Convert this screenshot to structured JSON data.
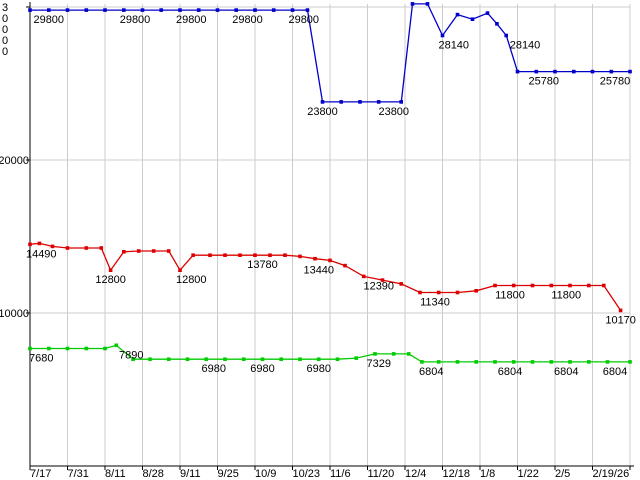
{
  "page": {
    "background": "#ffffff"
  },
  "chart_data": {
    "type": "line",
    "title": "",
    "xlabel": "",
    "ylabel": "",
    "ylim": [
      0,
      30000
    ],
    "grid": true,
    "legend": "none",
    "axis_color": "#000000",
    "grid_color": "#cccccc",
    "label_color": "#000000",
    "background_color": "#ffffff",
    "x_tick_labels": [
      "7/17",
      "7/31",
      "8/11",
      "8/28",
      "9/11",
      "9/25",
      "10/9",
      "10/23",
      "11/6",
      "11/20",
      "12/4",
      "12/18",
      "1/8",
      "1/22",
      "2/5",
      "2/19/26"
    ],
    "y_ticks": [
      {
        "value": 10000,
        "label": "10000",
        "orientation": "horizontal"
      },
      {
        "value": 20000,
        "label": "20000",
        "orientation": "horizontal"
      },
      {
        "value": 30000,
        "label": "30000",
        "orientation": "vertical"
      }
    ],
    "series": [
      {
        "name": "blue-price-series",
        "color": "#0000cc",
        "points": [
          [
            0,
            29800
          ],
          [
            0.5,
            29800
          ],
          [
            1,
            29800
          ],
          [
            1.5,
            29800
          ],
          [
            2,
            29800
          ],
          [
            2.5,
            29800
          ],
          [
            3,
            29800
          ],
          [
            3.5,
            29800
          ],
          [
            4,
            29800
          ],
          [
            4.5,
            29800
          ],
          [
            5,
            29800
          ],
          [
            5.5,
            29800
          ],
          [
            6,
            29800
          ],
          [
            6.5,
            29800
          ],
          [
            7,
            29800
          ],
          [
            7.4,
            29800
          ],
          [
            7.8,
            23800
          ],
          [
            8.3,
            23800
          ],
          [
            8.8,
            23800
          ],
          [
            9.3,
            23800
          ],
          [
            9.9,
            23800
          ],
          [
            10.2,
            30200
          ],
          [
            10.6,
            30200
          ],
          [
            11.0,
            28140
          ],
          [
            11.4,
            29500
          ],
          [
            11.8,
            29200
          ],
          [
            12.2,
            29600
          ],
          [
            12.45,
            28900
          ],
          [
            12.7,
            28140
          ],
          [
            13.0,
            25780
          ],
          [
            13.5,
            25780
          ],
          [
            14.0,
            25780
          ],
          [
            14.5,
            25780
          ],
          [
            15.0,
            25780
          ],
          [
            15.5,
            25780
          ],
          [
            16.0,
            25780
          ]
        ],
        "value_labels": [
          {
            "x": 0.5,
            "v": 29800,
            "text": "29800"
          },
          {
            "x": 2.8,
            "v": 29800,
            "text": "29800"
          },
          {
            "x": 4.3,
            "v": 29800,
            "text": "29800"
          },
          {
            "x": 5.8,
            "v": 29800,
            "text": "29800"
          },
          {
            "x": 7.3,
            "v": 29800,
            "text": "29800"
          },
          {
            "x": 7.8,
            "v": 23800,
            "text": "23800"
          },
          {
            "x": 9.7,
            "v": 23800,
            "text": "23800"
          },
          {
            "x": 11.3,
            "v": 28140,
            "text": "28140"
          },
          {
            "x": 13.2,
            "v": 28140,
            "text": "28140"
          },
          {
            "x": 13.7,
            "v": 25780,
            "text": "25780"
          },
          {
            "x": 15.6,
            "v": 25780,
            "text": "25780"
          }
        ]
      },
      {
        "name": "red-price-series",
        "color": "#dd0000",
        "points": [
          [
            0,
            14490
          ],
          [
            0.25,
            14550
          ],
          [
            0.6,
            14350
          ],
          [
            1.0,
            14250
          ],
          [
            1.5,
            14250
          ],
          [
            1.9,
            14250
          ],
          [
            2.15,
            12800
          ],
          [
            2.5,
            14000
          ],
          [
            2.9,
            14050
          ],
          [
            3.3,
            14050
          ],
          [
            3.7,
            14050
          ],
          [
            4.0,
            12800
          ],
          [
            4.35,
            13780
          ],
          [
            4.8,
            13780
          ],
          [
            5.2,
            13780
          ],
          [
            5.6,
            13780
          ],
          [
            6.0,
            13780
          ],
          [
            6.4,
            13780
          ],
          [
            6.8,
            13780
          ],
          [
            7.2,
            13700
          ],
          [
            7.6,
            13550
          ],
          [
            8.0,
            13440
          ],
          [
            8.4,
            13100
          ],
          [
            8.9,
            12390
          ],
          [
            9.4,
            12150
          ],
          [
            9.9,
            11900
          ],
          [
            10.4,
            11340
          ],
          [
            10.9,
            11340
          ],
          [
            11.4,
            11340
          ],
          [
            11.9,
            11450
          ],
          [
            12.4,
            11800
          ],
          [
            12.9,
            11800
          ],
          [
            13.4,
            11800
          ],
          [
            13.9,
            11800
          ],
          [
            14.4,
            11800
          ],
          [
            14.9,
            11800
          ],
          [
            15.3,
            11800
          ],
          [
            15.75,
            10170
          ]
        ],
        "value_labels": [
          {
            "x": 0.3,
            "v": 14490,
            "text": "14490"
          },
          {
            "x": 2.15,
            "v": 12800,
            "text": "12800"
          },
          {
            "x": 4.3,
            "v": 12800,
            "text": "12800"
          },
          {
            "x": 6.2,
            "v": 13780,
            "text": "13780"
          },
          {
            "x": 7.7,
            "v": 13440,
            "text": "13440"
          },
          {
            "x": 9.3,
            "v": 12390,
            "text": "12390"
          },
          {
            "x": 10.8,
            "v": 11340,
            "text": "11340"
          },
          {
            "x": 12.8,
            "v": 11800,
            "text": "11800"
          },
          {
            "x": 14.3,
            "v": 11800,
            "text": "11800"
          },
          {
            "x": 15.75,
            "v": 10170,
            "text": "10170"
          }
        ]
      },
      {
        "name": "green-price-series",
        "color": "#00cc00",
        "points": [
          [
            0,
            7680
          ],
          [
            0.5,
            7680
          ],
          [
            1.0,
            7680
          ],
          [
            1.5,
            7680
          ],
          [
            2.0,
            7680
          ],
          [
            2.3,
            7890
          ],
          [
            2.75,
            6980
          ],
          [
            3.2,
            6980
          ],
          [
            3.7,
            6980
          ],
          [
            4.2,
            6980
          ],
          [
            4.7,
            6980
          ],
          [
            5.2,
            6980
          ],
          [
            5.7,
            6980
          ],
          [
            6.2,
            6980
          ],
          [
            6.7,
            6980
          ],
          [
            7.2,
            6980
          ],
          [
            7.7,
            6980
          ],
          [
            8.2,
            6980
          ],
          [
            8.7,
            7050
          ],
          [
            9.2,
            7329
          ],
          [
            9.7,
            7329
          ],
          [
            10.1,
            7329
          ],
          [
            10.45,
            6804
          ],
          [
            10.9,
            6804
          ],
          [
            11.4,
            6804
          ],
          [
            11.9,
            6804
          ],
          [
            12.4,
            6804
          ],
          [
            12.9,
            6804
          ],
          [
            13.4,
            6804
          ],
          [
            13.9,
            6804
          ],
          [
            14.4,
            6804
          ],
          [
            14.9,
            6804
          ],
          [
            15.4,
            6804
          ],
          [
            16.0,
            6804
          ]
        ],
        "value_labels": [
          {
            "x": 0.3,
            "v": 7680,
            "text": "7680"
          },
          {
            "x": 2.7,
            "v": 7890,
            "text": "7890"
          },
          {
            "x": 4.9,
            "v": 6980,
            "text": "6980"
          },
          {
            "x": 6.2,
            "v": 6980,
            "text": "6980"
          },
          {
            "x": 7.7,
            "v": 6980,
            "text": "6980"
          },
          {
            "x": 9.3,
            "v": 7329,
            "text": "7329"
          },
          {
            "x": 10.7,
            "v": 6804,
            "text": "6804"
          },
          {
            "x": 12.8,
            "v": 6804,
            "text": "6804"
          },
          {
            "x": 14.3,
            "v": 6804,
            "text": "6804"
          },
          {
            "x": 15.6,
            "v": 6804,
            "text": "6804"
          }
        ]
      }
    ]
  }
}
